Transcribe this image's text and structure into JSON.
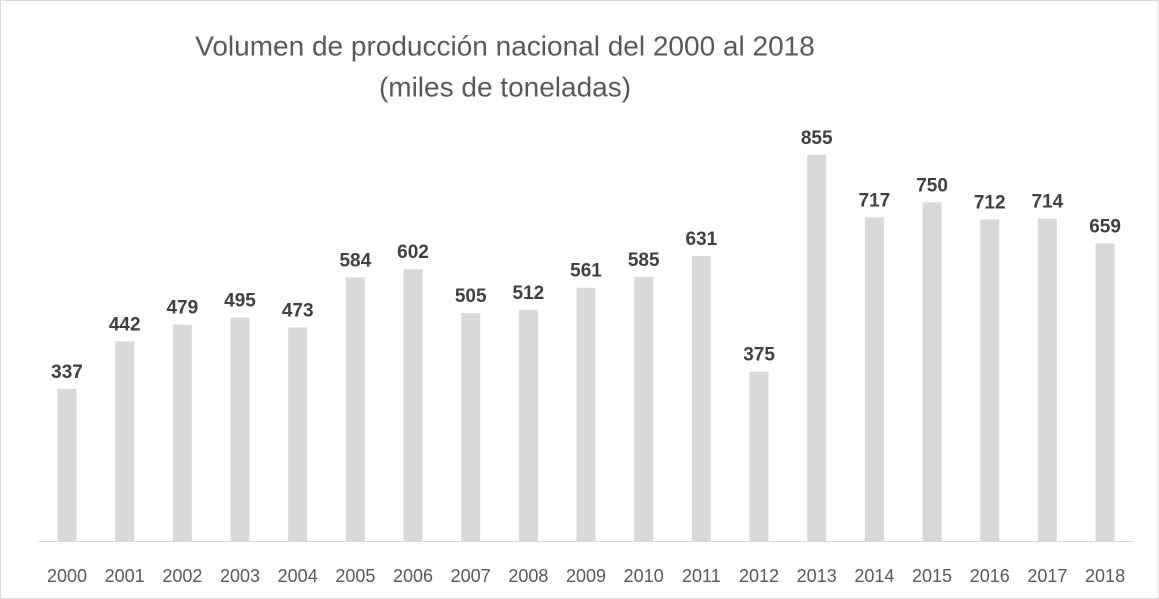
{
  "chart_data": {
    "type": "bar",
    "title": "Volumen de producción nacional del 2000 al 2018",
    "subtitle": "(miles de toneladas)",
    "categories": [
      "2000",
      "2001",
      "2002",
      "2003",
      "2004",
      "2005",
      "2006",
      "2007",
      "2008",
      "2009",
      "2010",
      "2011",
      "2012",
      "2013",
      "2014",
      "2015",
      "2016",
      "2017",
      "2018"
    ],
    "values": [
      337,
      442,
      479,
      495,
      473,
      584,
      602,
      505,
      512,
      561,
      585,
      631,
      375,
      855,
      717,
      750,
      712,
      714,
      659
    ],
    "color": "#d9d9d9"
  }
}
